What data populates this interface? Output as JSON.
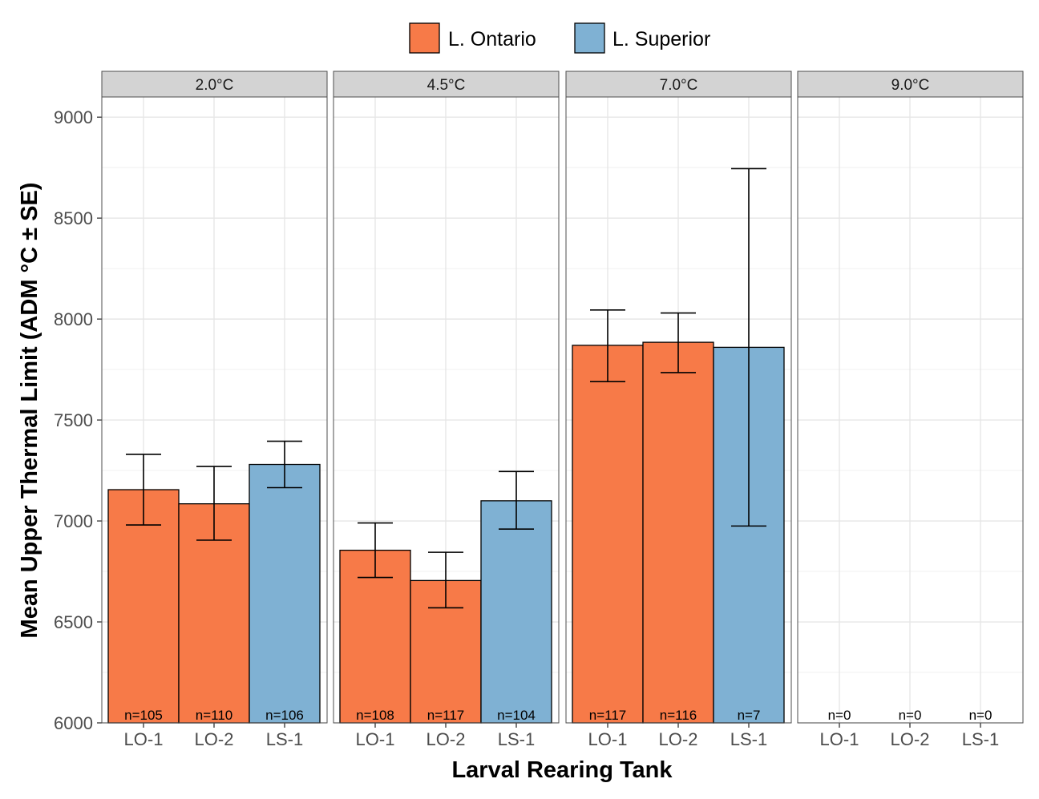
{
  "chart_data": {
    "type": "bar",
    "title": "",
    "xlabel": "Larval Rearing Tank",
    "ylabel": "Mean Upper Thermal Limit (ADM °C ± SE)",
    "ylim": [
      6000,
      9100
    ],
    "yticks": [
      6000,
      6500,
      7000,
      7500,
      8000,
      8500,
      9000
    ],
    "grid": true,
    "legend": {
      "position": "top",
      "entries": [
        {
          "name": "L. Ontario",
          "color": "#f77a48"
        },
        {
          "name": "L. Superior",
          "color": "#7fb1d3"
        }
      ]
    },
    "categories": [
      "LO-1",
      "LO-2",
      "LS-1"
    ],
    "panels": [
      {
        "label": "2.0°C",
        "bars": [
          {
            "category": "LO-1",
            "group": "L. Ontario",
            "value": 7155,
            "se_low": 6980,
            "se_high": 7330,
            "n_label": "n=105"
          },
          {
            "category": "LO-2",
            "group": "L. Ontario",
            "value": 7085,
            "se_low": 6905,
            "se_high": 7270,
            "n_label": "n=110"
          },
          {
            "category": "LS-1",
            "group": "L. Superior",
            "value": 7280,
            "se_low": 7165,
            "se_high": 7395,
            "n_label": "n=106"
          }
        ]
      },
      {
        "label": "4.5°C",
        "bars": [
          {
            "category": "LO-1",
            "group": "L. Ontario",
            "value": 6855,
            "se_low": 6720,
            "se_high": 6990,
            "n_label": "n=108"
          },
          {
            "category": "LO-2",
            "group": "L. Ontario",
            "value": 6705,
            "se_low": 6570,
            "se_high": 6845,
            "n_label": "n=117"
          },
          {
            "category": "LS-1",
            "group": "L. Superior",
            "value": 7100,
            "se_low": 6960,
            "se_high": 7245,
            "n_label": "n=104"
          }
        ]
      },
      {
        "label": "7.0°C",
        "bars": [
          {
            "category": "LO-1",
            "group": "L. Ontario",
            "value": 7870,
            "se_low": 7690,
            "se_high": 8045,
            "n_label": "n=117"
          },
          {
            "category": "LO-2",
            "group": "L. Ontario",
            "value": 7885,
            "se_low": 7735,
            "se_high": 8030,
            "n_label": "n=116"
          },
          {
            "category": "LS-1",
            "group": "L. Superior",
            "value": 7860,
            "se_low": 6975,
            "se_high": 8745,
            "n_label": "n=7"
          }
        ]
      },
      {
        "label": "9.0°C",
        "bars": [
          {
            "category": "LO-1",
            "group": "L. Ontario",
            "value": null,
            "n_label": "n=0"
          },
          {
            "category": "LO-2",
            "group": "L. Ontario",
            "value": null,
            "n_label": "n=0"
          },
          {
            "category": "LS-1",
            "group": "L. Superior",
            "value": null,
            "n_label": "n=0"
          }
        ]
      }
    ]
  }
}
